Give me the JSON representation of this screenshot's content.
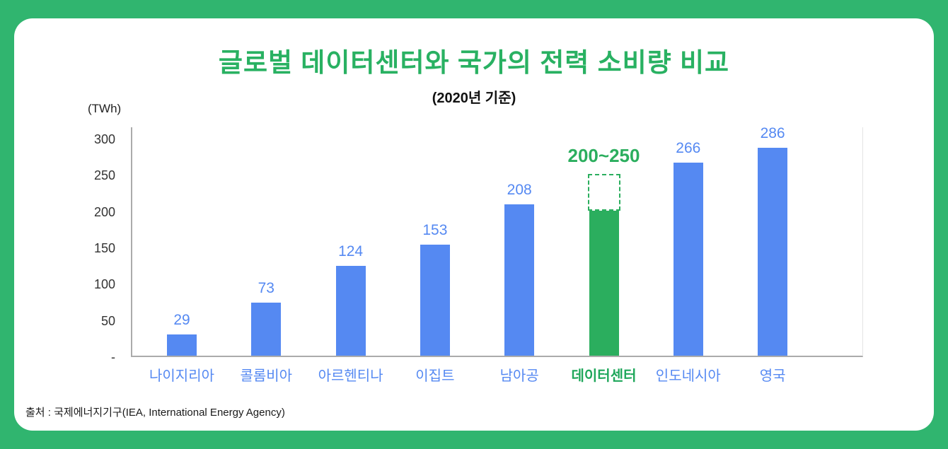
{
  "chart_data": {
    "type": "bar",
    "title": "글로벌 데이터센터와 국가의 전력 소비량 비교",
    "subtitle": "(2020년 기준)",
    "ylabel": "(TWh)",
    "categories": [
      "나이지리아",
      "콜롬비아",
      "아르헨티나",
      "이집트",
      "남아공",
      "데이터센터",
      "인도네시아",
      "영국"
    ],
    "values": [
      29,
      73,
      124,
      153,
      208,
      200,
      266,
      286
    ],
    "value_labels": [
      "29",
      "73",
      "124",
      "153",
      "208",
      "200~250",
      "266",
      "286"
    ],
    "highlight_index": 5,
    "highlight_range": [
      200,
      250
    ],
    "ylim": [
      0,
      300
    ],
    "yticks": [
      300,
      250,
      200,
      150,
      100,
      50
    ],
    "baseline_tick": "-",
    "grid": false,
    "legend": false
  },
  "footer": {
    "source": "출처 : 국제에너지기구(IEA, International Energy Agency)"
  },
  "colors": {
    "background": "#30B56F",
    "card": "#FFFFFF",
    "title": "#29B162",
    "bar": "#5589F2",
    "bar_label": "#5589F2",
    "highlight": "#2BAE5E",
    "highlight_label": "#2BAE5E",
    "category": "#5589F2",
    "category_highlight": "#1FA75B",
    "axis": "#ABABAB",
    "text": "#1A1A1A"
  }
}
